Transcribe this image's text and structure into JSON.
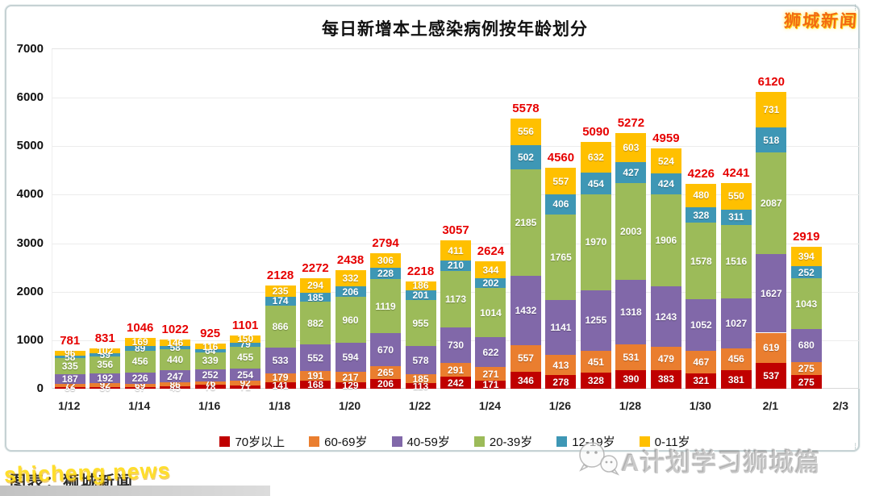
{
  "header": {
    "logo_text": "狮城新闻"
  },
  "chart_data": {
    "type": "bar",
    "subtype": "stacked",
    "title": "每日新增本土感染病例按年龄划分",
    "categories": [
      "1/12",
      "1/13",
      "1/14",
      "1/15",
      "1/16",
      "1/17",
      "1/18",
      "1/19",
      "1/20",
      "1/21",
      "1/22",
      "1/23",
      "1/24",
      "1/25",
      "1/26",
      "1/27",
      "1/28",
      "1/29",
      "1/30",
      "1/31",
      "2/1",
      "2/2"
    ],
    "x_tick_labels": [
      "1/12",
      "1/14",
      "1/16",
      "1/18",
      "1/20",
      "1/22",
      "1/24",
      "1/26",
      "1/28",
      "1/30",
      "2/1",
      "2/3"
    ],
    "series": [
      {
        "key": "age-70-plus",
        "name": "70岁以上",
        "color": "#c00000",
        "values": [
          33,
          30,
          37,
          45,
          78,
          71,
          141,
          168,
          129,
          206,
          113,
          242,
          171,
          346,
          278,
          328,
          390,
          383,
          321,
          381,
          537,
          275
        ]
      },
      {
        "key": "age-60-69",
        "name": "60-69岁",
        "color": "#ea7e2f",
        "values": [
          72,
          92,
          69,
          86,
          76,
          92,
          179,
          191,
          217,
          265,
          185,
          291,
          271,
          557,
          413,
          451,
          531,
          479,
          467,
          456,
          619,
          275
        ]
      },
      {
        "key": "age-40-59",
        "name": "40-59岁",
        "color": "#8168a9",
        "values": [
          187,
          192,
          226,
          247,
          252,
          254,
          533,
          552,
          594,
          670,
          578,
          730,
          622,
          1432,
          1141,
          1255,
          1318,
          1243,
          1052,
          1027,
          1627,
          680
        ]
      },
      {
        "key": "age-20-39",
        "name": "20-39岁",
        "color": "#9cbb59",
        "values": [
          335,
          356,
          456,
          440,
          339,
          455,
          866,
          882,
          960,
          1119,
          955,
          1173,
          1014,
          2185,
          1765,
          1970,
          2003,
          1906,
          1578,
          1516,
          2087,
          1043
        ]
      },
      {
        "key": "age-12-19",
        "name": "12-19岁",
        "color": "#3e97b5",
        "values": [
          58,
          59,
          89,
          58,
          64,
          79,
          174,
          185,
          206,
          228,
          201,
          210,
          202,
          502,
          406,
          454,
          427,
          424,
          328,
          311,
          518,
          252
        ]
      },
      {
        "key": "age-0-11",
        "name": "0-11岁",
        "color": "#ffc000",
        "values": [
          96,
          102,
          169,
          146,
          116,
          150,
          235,
          294,
          332,
          306,
          186,
          411,
          344,
          556,
          557,
          632,
          603,
          524,
          480,
          550,
          731,
          394
        ]
      }
    ],
    "totals": [
      781,
      831,
      1046,
      1022,
      925,
      1101,
      2128,
      2272,
      2438,
      2794,
      2218,
      3057,
      2624,
      5578,
      4560,
      5090,
      5272,
      4959,
      4226,
      4241,
      6120,
      2919
    ],
    "ylim": [
      0,
      7000
    ],
    "y_ticks": [
      0,
      1000,
      2000,
      3000,
      4000,
      5000,
      6000,
      7000
    ],
    "grid": true,
    "legend_position": "bottom",
    "total_label_color": "#e60000"
  },
  "footer": {
    "credit": "图表：狮城新闻",
    "watermark_left": "shicheng.news",
    "watermark_right": "A计划学习狮城篇",
    "wechat_icon": "wechat-bubbles-icon"
  }
}
